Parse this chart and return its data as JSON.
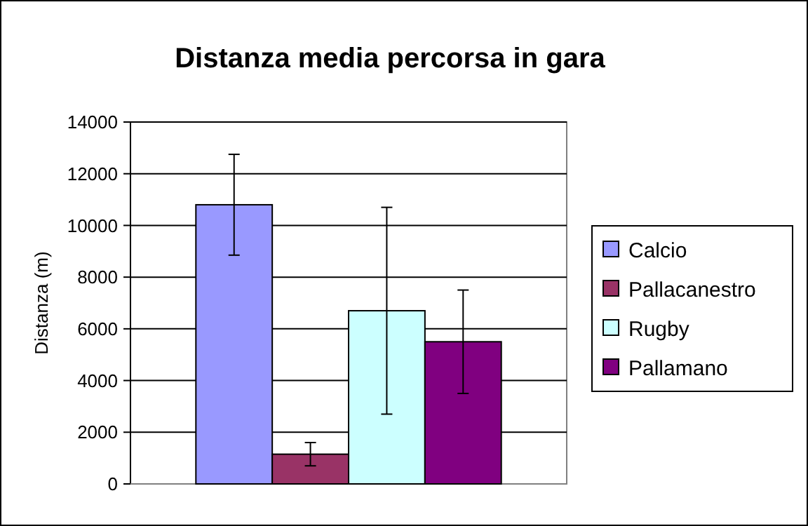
{
  "chart_data": {
    "type": "bar",
    "title": "Distanza media percorsa in gara",
    "ylabel": "Distanza (m)",
    "categories": [
      null
    ],
    "series": [
      {
        "name": "Calcio",
        "color": "#9999ff",
        "values": [
          10800
        ],
        "errors": [
          1950
        ]
      },
      {
        "name": "Pallacanestro",
        "color": "#993366",
        "values": [
          1150
        ],
        "errors": [
          450
        ]
      },
      {
        "name": "Rugby",
        "color": "#ccffff",
        "values": [
          6700
        ],
        "errors": [
          4000
        ]
      },
      {
        "name": "Pallamano",
        "color": "#800080",
        "values": [
          5500
        ],
        "errors": [
          2000
        ]
      }
    ],
    "ylim": [
      0,
      14000
    ],
    "yticks": [
      0,
      2000,
      4000,
      6000,
      8000,
      10000,
      12000,
      14000
    ],
    "grid": "y",
    "legend": "right"
  }
}
